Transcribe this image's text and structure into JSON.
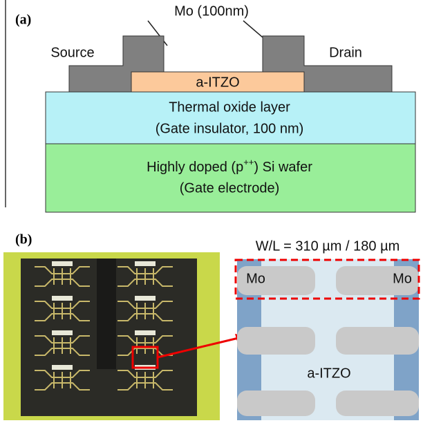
{
  "panel_a": {
    "label": "(a)",
    "metal_label": "Mo (100nm)",
    "source": "Source",
    "drain": "Drain",
    "channel": "a-ITZO",
    "oxide": [
      "Thermal oxide layer",
      "(Gate insulator, 100 nm)"
    ],
    "wafer": {
      "line1_pre": "Highly doped (p",
      "line1_sup": "++",
      "line1_post": ") Si wafer",
      "line2": "(Gate electrode)"
    }
  },
  "panel_b": {
    "label": "(b)",
    "ratio": "W/L = 310 µm / 180 µm",
    "mo_left": "Mo",
    "mo_right": "Mo",
    "channel": "a-ITZO"
  }
}
